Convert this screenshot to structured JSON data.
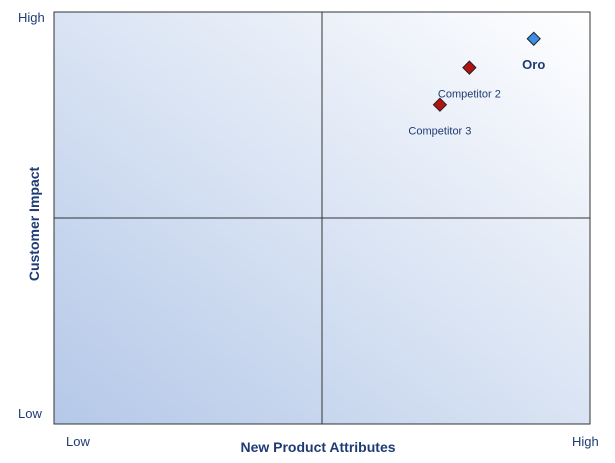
{
  "chart_data": {
    "type": "scatter",
    "title": "",
    "xlabel": "New Product Attributes",
    "ylabel": "Customer Impact",
    "xlim": [
      0,
      100
    ],
    "ylim": [
      0,
      100
    ],
    "x_ticks": [
      {
        "label": "Low",
        "value": 0
      },
      {
        "label": "High",
        "value": 100
      }
    ],
    "y_ticks": [
      {
        "label": "High",
        "value": 100
      },
      {
        "label": "Low",
        "value": 0
      }
    ],
    "quadrant_dividers": {
      "x": 50,
      "y": 50
    },
    "grid": false,
    "points": [
      {
        "name": "Oro",
        "x": 89.5,
        "y": 93.5,
        "color": "#3d8fe6",
        "label_style": "bold",
        "label_anchor": "below"
      },
      {
        "name": "Competitor 2",
        "x": 77.5,
        "y": 86.5,
        "color": "#b31212",
        "label_style": "normal",
        "label_anchor": "below"
      },
      {
        "name": "Competitor 3",
        "x": 72,
        "y": 77.5,
        "color": "#b31212",
        "label_style": "normal",
        "label_anchor": "below"
      }
    ],
    "background_gradient": [
      "#b4c8e8",
      "#ffffff"
    ],
    "border_color": "#333333"
  }
}
